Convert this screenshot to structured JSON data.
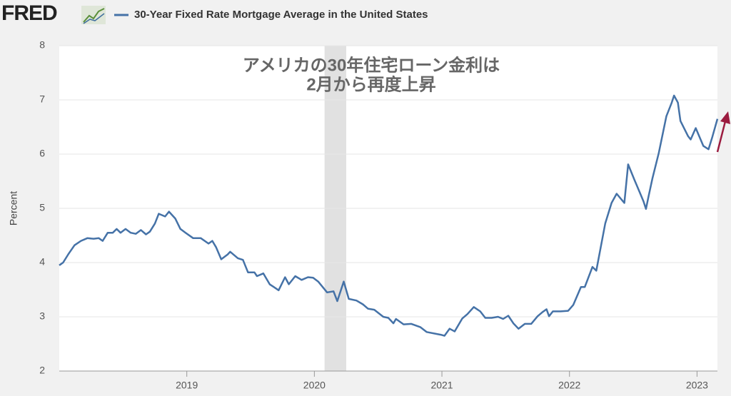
{
  "logo": "FRED",
  "chart_data": {
    "type": "line",
    "annotation": [
      "アメリカの30年住宅ローン金利は",
      "2月から再度上昇"
    ],
    "y_label": "Percent",
    "x": [
      2018.0,
      2018.03,
      2018.07,
      2018.12,
      2018.17,
      2018.22,
      2018.27,
      2018.31,
      2018.34,
      2018.38,
      2018.42,
      2018.45,
      2018.48,
      2018.52,
      2018.56,
      2018.6,
      2018.64,
      2018.68,
      2018.71,
      2018.75,
      2018.78,
      2018.83,
      2018.86,
      2018.91,
      2018.95,
      2018.99,
      2019.05,
      2019.11,
      2019.17,
      2019.2,
      2019.23,
      2019.27,
      2019.32,
      2019.34,
      2019.4,
      2019.44,
      2019.48,
      2019.53,
      2019.55,
      2019.6,
      2019.65,
      2019.72,
      2019.77,
      2019.8,
      2019.85,
      2019.9,
      2019.95,
      2019.99,
      2020.03,
      2020.1,
      2020.15,
      2020.18,
      2020.23,
      2020.27,
      2020.33,
      2020.38,
      2020.42,
      2020.47,
      2020.54,
      2020.58,
      2020.62,
      2020.64,
      2020.7,
      2020.76,
      2020.83,
      2020.88,
      2020.99,
      2021.02,
      2021.06,
      2021.1,
      2021.16,
      2021.2,
      2021.25,
      2021.3,
      2021.34,
      2021.39,
      2021.44,
      2021.48,
      2021.52,
      2021.56,
      2021.6,
      2021.65,
      2021.7,
      2021.75,
      2021.79,
      2021.82,
      2021.84,
      2021.87,
      2021.93,
      2021.99,
      2022.03,
      2022.09,
      2022.12,
      2022.18,
      2022.21,
      2022.28,
      2022.33,
      2022.37,
      2022.43,
      2022.46,
      2022.51,
      2022.55,
      2022.58,
      2022.6,
      2022.62,
      2022.65,
      2022.7,
      2022.76,
      2022.8,
      2022.82,
      2022.85,
      2022.87,
      2022.93,
      2022.95,
      2022.99,
      2023.05,
      2023.09,
      2023.12,
      2023.16
    ],
    "series": [
      {
        "name": "30-Year Fixed Rate Mortgage Average in the United States",
        "color": "#4572a7",
        "values": [
          3.95,
          4.0,
          4.15,
          4.32,
          4.4,
          4.45,
          4.44,
          4.45,
          4.4,
          4.55,
          4.55,
          4.62,
          4.55,
          4.62,
          4.55,
          4.53,
          4.6,
          4.52,
          4.57,
          4.72,
          4.9,
          4.85,
          4.94,
          4.81,
          4.62,
          4.55,
          4.45,
          4.45,
          4.35,
          4.4,
          4.28,
          4.06,
          4.15,
          4.2,
          4.08,
          4.05,
          3.82,
          3.82,
          3.75,
          3.8,
          3.6,
          3.49,
          3.73,
          3.6,
          3.75,
          3.68,
          3.73,
          3.72,
          3.65,
          3.45,
          3.47,
          3.29,
          3.65,
          3.33,
          3.3,
          3.23,
          3.15,
          3.13,
          3.0,
          2.98,
          2.88,
          2.96,
          2.86,
          2.87,
          2.81,
          2.72,
          2.67,
          2.65,
          2.78,
          2.73,
          2.97,
          3.05,
          3.18,
          3.1,
          2.98,
          2.98,
          3.0,
          2.96,
          3.02,
          2.88,
          2.78,
          2.87,
          2.87,
          3.01,
          3.09,
          3.14,
          3.01,
          3.1,
          3.1,
          3.11,
          3.22,
          3.55,
          3.55,
          3.92,
          3.85,
          4.72,
          5.1,
          5.27,
          5.1,
          5.81,
          5.52,
          5.3,
          5.13,
          4.99,
          5.22,
          5.55,
          6.02,
          6.7,
          6.94,
          7.08,
          6.95,
          6.61,
          6.33,
          6.27,
          6.48,
          6.15,
          6.09,
          6.32,
          6.65
        ]
      }
    ],
    "shading": [
      [
        2020.08,
        2020.25
      ]
    ],
    "xlim": [
      2018.0,
      2023.16
    ],
    "xticks": [
      2019,
      2020,
      2021,
      2022,
      2023
    ],
    "ylim": [
      2,
      8
    ],
    "yticks": [
      2,
      3,
      4,
      5,
      6,
      7,
      8
    ],
    "grid": true
  }
}
